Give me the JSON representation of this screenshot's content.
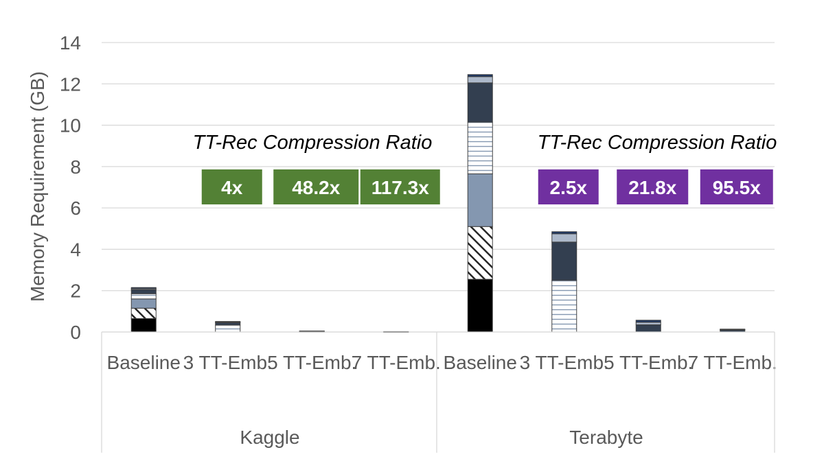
{
  "chart_data": {
    "type": "bar",
    "stacked": true,
    "ylabel": "Memory Requirement (GB)",
    "ylim": [
      0,
      14
    ],
    "yticks": [
      0,
      2,
      4,
      6,
      8,
      10,
      12,
      14
    ],
    "grid": true,
    "groups": [
      {
        "name": "Kaggle",
        "ratio_title": "TT-Rec Compression Ratio",
        "ratio_color": "#538135",
        "bars": [
          {
            "label": "Baseline",
            "ratio": "",
            "segments": [
              0.65,
              0.5,
              0.45,
              0.25,
              0.2,
              0.05,
              0.05
            ]
          },
          {
            "label": "3 TT-Emb.",
            "ratio": "4x",
            "segments": [
              0,
              0,
              0,
              0.33,
              0.12,
              0.03,
              0.03
            ]
          },
          {
            "label": "5 TT-Emb.",
            "ratio": "48.2x",
            "segments": [
              0,
              0,
              0,
              0.02,
              0.02,
              0.01,
              0
            ]
          },
          {
            "label": "7 TT-Emb.",
            "ratio": "117.3x",
            "segments": [
              0,
              0,
              0,
              0.01,
              0.01,
              0,
              0
            ]
          }
        ]
      },
      {
        "name": "Terabyte",
        "ratio_title": "TT-Rec Compression Ratio",
        "ratio_color": "#7030a0",
        "bars": [
          {
            "label": "Baseline",
            "ratio": "",
            "segments": [
              2.55,
              2.55,
              2.55,
              2.5,
              1.9,
              0.3,
              0.1
            ]
          },
          {
            "label": "3 TT-Emb.",
            "ratio": "2.5x",
            "segments": [
              0,
              0,
              0,
              2.5,
              1.85,
              0.4,
              0.1
            ]
          },
          {
            "label": "5 TT-Emb.",
            "ratio": "21.8x",
            "segments": [
              0,
              0,
              0,
              0,
              0.35,
              0.12,
              0.1
            ]
          },
          {
            "label": "7 TT-Emb.",
            "ratio": "95.5x",
            "segments": [
              0,
              0,
              0,
              0,
              0.1,
              0.02,
              0.02
            ]
          }
        ]
      }
    ],
    "segment_styles": [
      "solid-black",
      "diagonal-hatch",
      "steel-blue",
      "horizontal-lines",
      "dark-slate",
      "light-blue",
      "navy"
    ],
    "segment_colors": [
      "#000000",
      "#ffffff",
      "#8497b0",
      "#ffffff",
      "#333f50",
      "#adb9ca",
      "#1f3864"
    ]
  }
}
